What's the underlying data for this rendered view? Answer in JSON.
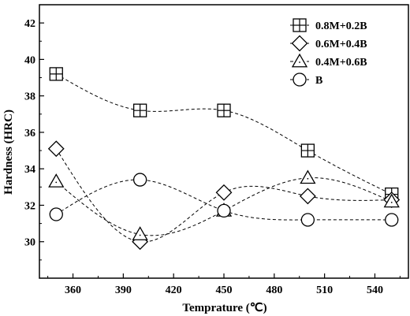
{
  "chart_data": {
    "type": "scatter",
    "xlabel": "Temprature (℃)",
    "ylabel": "Hardness (HRC)",
    "xlim": [
      340,
      560
    ],
    "ylim": [
      28,
      43
    ],
    "xticks": [
      360,
      390,
      420,
      450,
      480,
      510,
      540
    ],
    "yticks": [
      30,
      32,
      34,
      36,
      38,
      40,
      42
    ],
    "legend_position": "top-right",
    "grid": false,
    "series": [
      {
        "name": "0.8M+0.2B",
        "marker": "square-plus",
        "x": [
          350,
          400,
          450,
          500,
          550
        ],
        "y": [
          39.2,
          37.2,
          37.2,
          35.0,
          32.6
        ]
      },
      {
        "name": "0.6M+0.4B",
        "marker": "diamond",
        "x": [
          350,
          400,
          450,
          500,
          550
        ],
        "y": [
          35.1,
          30.0,
          32.7,
          32.5,
          32.3
        ]
      },
      {
        "name": "0.4M+0.6B",
        "marker": "triangle",
        "x": [
          350,
          400,
          450,
          500,
          550
        ],
        "y": [
          33.3,
          30.4,
          31.7,
          33.5,
          32.2
        ]
      },
      {
        "name": "B",
        "marker": "circle",
        "x": [
          350,
          400,
          450,
          500,
          550
        ],
        "y": [
          31.5,
          33.4,
          31.7,
          31.2,
          31.2
        ]
      }
    ]
  }
}
